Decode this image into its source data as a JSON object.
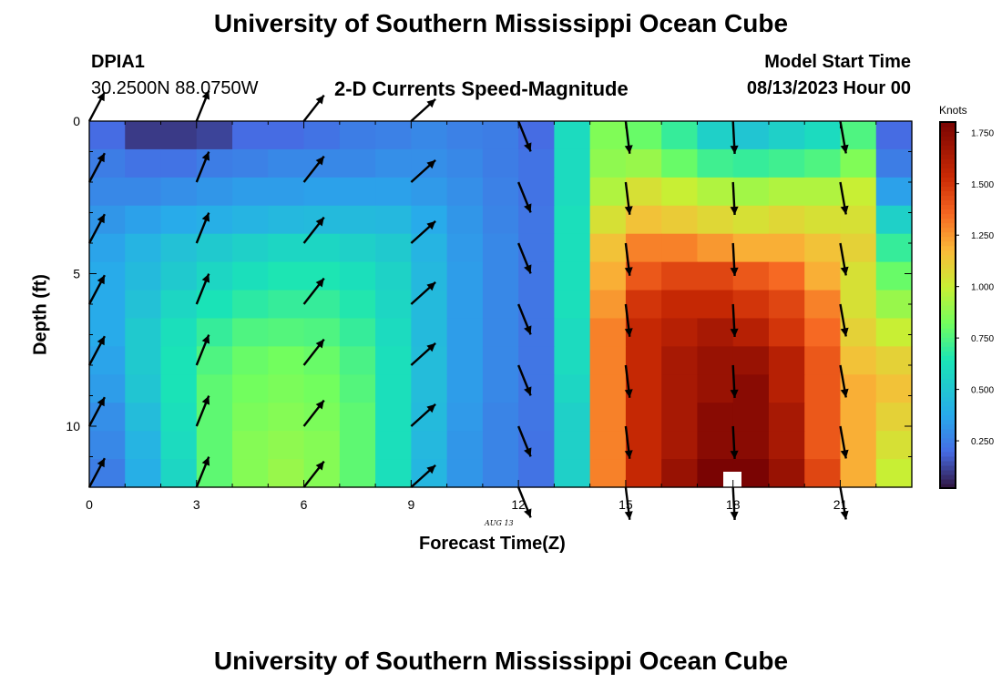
{
  "header": {
    "title": "University of Southern Mississippi Ocean Cube",
    "station": "DPIA1",
    "coords": "30.2500N  88.0750W",
    "subtitle": "2-D Currents Speed-Magnitude",
    "model_label": "Model Start Time",
    "model_time": "08/13/2023 Hour 00"
  },
  "footer": {
    "title": "University of Southern Mississippi Ocean Cube"
  },
  "chart_data": {
    "type": "heatmap",
    "title": "2-D Currents Speed-Magnitude",
    "xlabel": "Forecast Time(Z)",
    "ylabel": "Depth (ft)",
    "date_label": "AUG 13",
    "xlim": [
      0,
      23
    ],
    "ylim": [
      12,
      0
    ],
    "xticks": [
      0,
      3,
      6,
      9,
      12,
      15,
      18,
      21
    ],
    "xtick_labels": [
      "0",
      "3",
      "6",
      "9",
      "12",
      "15",
      "18",
      "21"
    ],
    "yticks": [
      0,
      5,
      10
    ],
    "ytick_labels": [
      "0",
      "5",
      "10"
    ],
    "colorbar": {
      "label": "Knots",
      "min": 0.02,
      "max": 1.8,
      "ticks": [
        0.25,
        0.5,
        0.75,
        1.0,
        1.25,
        1.5,
        1.75
      ],
      "tick_labels": [
        "0.250",
        "0.500",
        "0.750",
        "1.000",
        "1.250",
        "1.500",
        "1.750"
      ]
    },
    "hours": [
      0,
      1,
      2,
      3,
      4,
      5,
      6,
      7,
      8,
      9,
      10,
      11,
      12,
      13,
      14,
      15,
      16,
      17,
      18,
      19,
      20,
      21,
      22
    ],
    "depths_ft": [
      0,
      1,
      2,
      3,
      4,
      5,
      6,
      7,
      8,
      9,
      10,
      11,
      12
    ],
    "speed_knots": [
      [
        0.2,
        0.1,
        0.1,
        0.12,
        0.2,
        0.2,
        0.22,
        0.25,
        0.26,
        0.28,
        0.26,
        0.25,
        0.2,
        0.6,
        0.85,
        0.8,
        0.7,
        0.55,
        0.5,
        0.55,
        0.6,
        0.75,
        0.2
      ],
      [
        0.25,
        0.22,
        0.22,
        0.25,
        0.26,
        0.28,
        0.28,
        0.28,
        0.3,
        0.3,
        0.28,
        0.25,
        0.22,
        0.6,
        0.88,
        0.9,
        0.8,
        0.72,
        0.7,
        0.72,
        0.75,
        0.85,
        0.25
      ],
      [
        0.28,
        0.28,
        0.3,
        0.32,
        0.34,
        0.34,
        0.35,
        0.35,
        0.35,
        0.33,
        0.3,
        0.26,
        0.22,
        0.6,
        0.95,
        1.05,
        1.0,
        0.95,
        0.92,
        0.95,
        0.95,
        1.0,
        0.35
      ],
      [
        0.32,
        0.35,
        0.38,
        0.4,
        0.42,
        0.44,
        0.45,
        0.45,
        0.44,
        0.38,
        0.32,
        0.27,
        0.23,
        0.62,
        1.05,
        1.15,
        1.12,
        1.08,
        1.05,
        1.08,
        1.05,
        1.05,
        0.55
      ],
      [
        0.36,
        0.42,
        0.48,
        0.52,
        0.55,
        0.58,
        0.58,
        0.55,
        0.52,
        0.42,
        0.33,
        0.28,
        0.23,
        0.62,
        1.15,
        1.3,
        1.3,
        1.25,
        1.2,
        1.2,
        1.15,
        1.1,
        0.7
      ],
      [
        0.38,
        0.45,
        0.52,
        0.58,
        0.62,
        0.65,
        0.65,
        0.62,
        0.56,
        0.44,
        0.34,
        0.28,
        0.23,
        0.62,
        1.2,
        1.4,
        1.45,
        1.45,
        1.4,
        1.35,
        1.2,
        1.05,
        0.8
      ],
      [
        0.38,
        0.48,
        0.58,
        0.64,
        0.68,
        0.7,
        0.7,
        0.66,
        0.58,
        0.45,
        0.34,
        0.28,
        0.23,
        0.62,
        1.25,
        1.5,
        1.55,
        1.55,
        1.5,
        1.45,
        1.3,
        1.05,
        0.9
      ],
      [
        0.38,
        0.52,
        0.62,
        0.7,
        0.75,
        0.76,
        0.75,
        0.7,
        0.6,
        0.45,
        0.34,
        0.28,
        0.23,
        0.6,
        1.3,
        1.55,
        1.6,
        1.65,
        1.6,
        1.5,
        1.35,
        1.1,
        1.0
      ],
      [
        0.36,
        0.52,
        0.64,
        0.75,
        0.8,
        0.82,
        0.8,
        0.74,
        0.62,
        0.46,
        0.34,
        0.28,
        0.23,
        0.6,
        1.3,
        1.55,
        1.65,
        1.7,
        1.7,
        1.6,
        1.4,
        1.15,
        1.1
      ],
      [
        0.34,
        0.5,
        0.64,
        0.78,
        0.82,
        0.84,
        0.82,
        0.76,
        0.62,
        0.46,
        0.34,
        0.28,
        0.23,
        0.58,
        1.3,
        1.55,
        1.65,
        1.7,
        1.75,
        1.6,
        1.4,
        1.2,
        1.15
      ],
      [
        0.3,
        0.46,
        0.62,
        0.78,
        0.84,
        0.86,
        0.84,
        0.78,
        0.62,
        0.45,
        0.33,
        0.27,
        0.23,
        0.55,
        1.3,
        1.55,
        1.65,
        1.75,
        1.75,
        1.65,
        1.4,
        1.2,
        1.1
      ],
      [
        0.28,
        0.42,
        0.6,
        0.78,
        0.86,
        0.88,
        0.86,
        0.78,
        0.62,
        0.44,
        0.32,
        0.27,
        0.22,
        0.55,
        1.3,
        1.55,
        1.65,
        1.75,
        1.75,
        1.65,
        1.4,
        1.2,
        1.05
      ],
      [
        0.25,
        0.4,
        0.58,
        0.78,
        0.86,
        0.9,
        0.86,
        0.78,
        0.62,
        0.43,
        0.32,
        0.27,
        0.22,
        0.55,
        1.3,
        1.55,
        1.7,
        1.8,
        1.8,
        1.7,
        1.45,
        1.2,
        1.0
      ]
    ],
    "vector_hours": [
      0,
      3,
      6,
      9,
      12,
      15,
      18,
      21
    ],
    "vector_depths_ft": [
      0,
      2,
      4,
      6,
      8,
      10,
      12
    ],
    "vector_direction_deg": [
      28,
      22,
      38,
      48,
      158,
      173,
      177,
      170
    ]
  }
}
